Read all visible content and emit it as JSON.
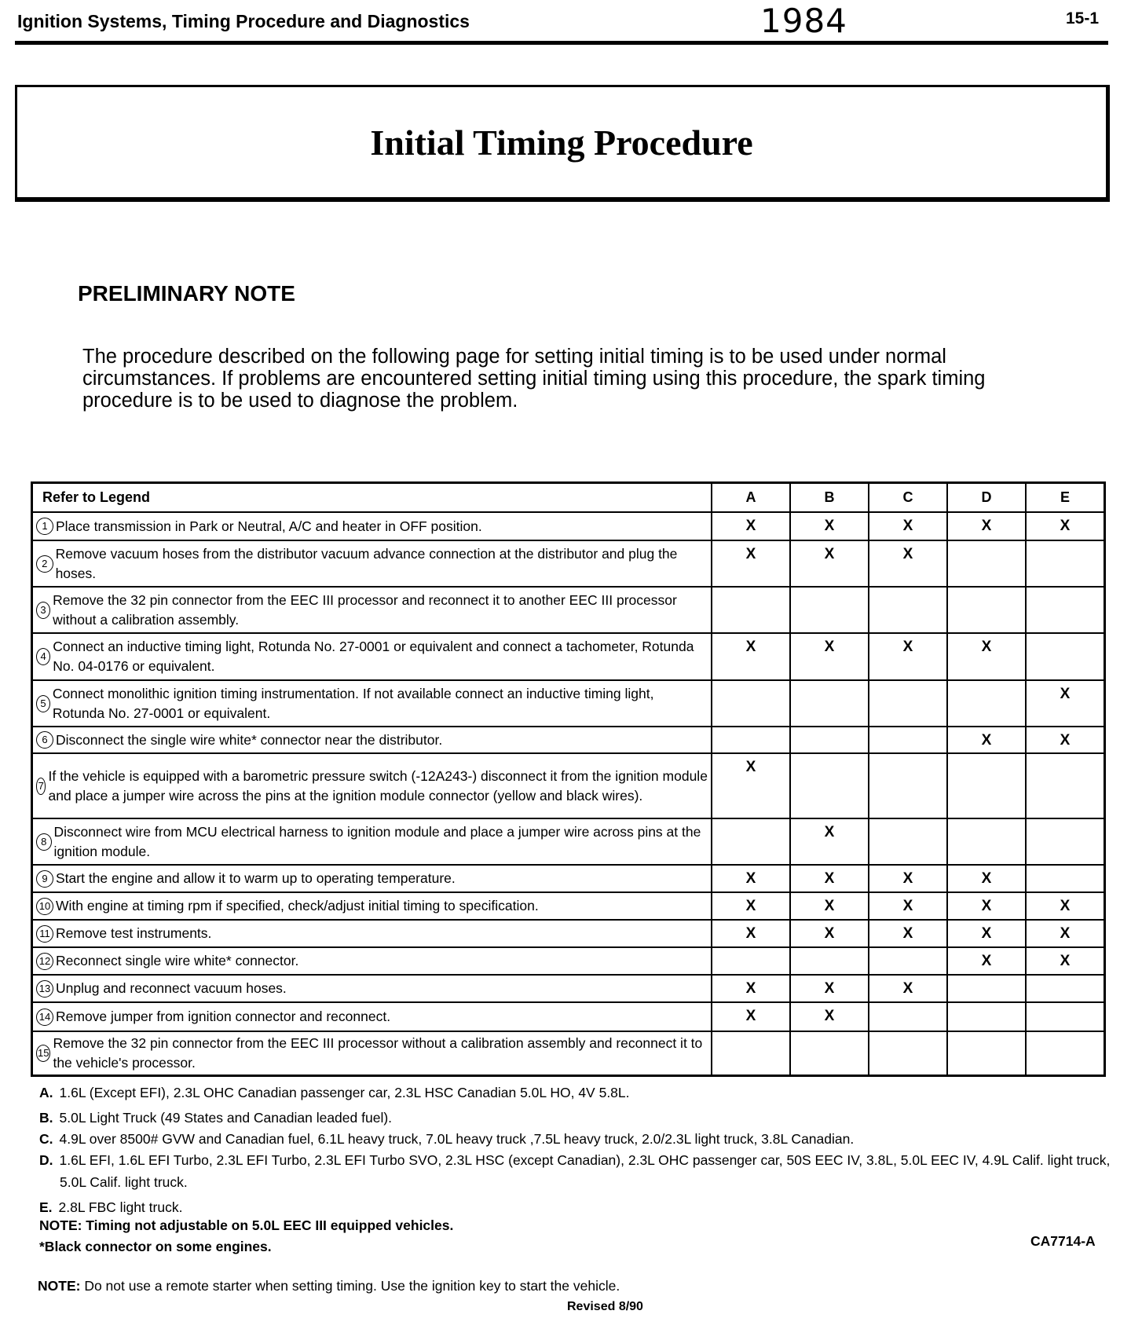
{
  "header": {
    "section_title": "Ignition Systems, Timing Procedure and Diagnostics",
    "year": "1984",
    "page_number": "15-1"
  },
  "title": "Initial Timing Procedure",
  "preliminary_note": {
    "heading": "PRELIMINARY NOTE",
    "text": "The procedure described on the following page for setting initial timing is to be used under normal circumstances. If problems are encountered setting initial timing using this procedure, the spark timing procedure is to be used to diagnose the problem."
  },
  "table": {
    "header": "Refer to Legend",
    "columns": [
      "A",
      "B",
      "C",
      "D",
      "E"
    ],
    "rows": [
      {
        "num": "1",
        "text": "Place transmission in Park or Neutral, A/C and heater in OFF position.",
        "marks": [
          "X",
          "X",
          "X",
          "X",
          "X"
        ]
      },
      {
        "num": "2",
        "text": "Remove vacuum hoses from the distributor vacuum advance connection at the distributor and plug the hoses.",
        "marks": [
          "X",
          "X",
          "X",
          "",
          ""
        ]
      },
      {
        "num": "3",
        "text": "Remove the 32 pin connector from the EEC III processor and reconnect it to another EEC III processor without a calibration assembly.",
        "marks": [
          "",
          "",
          "",
          "",
          ""
        ]
      },
      {
        "num": "4",
        "text": "Connect an inductive timing light, Rotunda No. 27-0001 or equivalent and connect a tachometer, Rotunda No. 04-0176 or equivalent.",
        "marks": [
          "X",
          "X",
          "X",
          "X",
          ""
        ]
      },
      {
        "num": "5",
        "text": "Connect monolithic ignition timing instrumentation. If not available connect an inductive timing light, Rotunda No. 27-0001 or equivalent.",
        "marks": [
          "",
          "",
          "",
          "",
          "X"
        ]
      },
      {
        "num": "6",
        "text": "Disconnect the single wire white* connector near the distributor.",
        "marks": [
          "",
          "",
          "",
          "X",
          "X"
        ]
      },
      {
        "num": "7",
        "text": "If the vehicle is equipped with a barometric pressure switch (-12A243-) disconnect it from the ignition module and place a jumper wire across the pins at the ignition module connector (yellow and black wires).",
        "marks": [
          "X",
          "",
          "",
          "",
          ""
        ]
      },
      {
        "num": "8",
        "text": "Disconnect wire from MCU electrical harness to ignition module and place a jumper wire across pins at the ignition module.",
        "marks": [
          "",
          "X",
          "",
          "",
          ""
        ]
      },
      {
        "num": "9",
        "text": "Start the engine and allow it to warm up to operating temperature.",
        "marks": [
          "X",
          "X",
          "X",
          "X",
          ""
        ]
      },
      {
        "num": "10",
        "text": "With engine at timing rpm if specified, check/adjust initial timing to specification.",
        "marks": [
          "X",
          "X",
          "X",
          "X",
          "X"
        ]
      },
      {
        "num": "11",
        "text": "Remove test instruments.",
        "marks": [
          "X",
          "X",
          "X",
          "X",
          "X"
        ]
      },
      {
        "num": "12",
        "text": "Reconnect single wire white* connector.",
        "marks": [
          "",
          "",
          "",
          "X",
          "X"
        ]
      },
      {
        "num": "13",
        "text": "Unplug and reconnect vacuum hoses.",
        "marks": [
          "X",
          "X",
          "X",
          "",
          ""
        ]
      },
      {
        "num": "14",
        "text": "Remove jumper from ignition connector and reconnect.",
        "marks": [
          "X",
          "X",
          "",
          "",
          ""
        ]
      },
      {
        "num": "15",
        "text": "Remove the 32 pin connector from the EEC III processor without a calibration assembly and reconnect it to the vehicle's processor.",
        "marks": [
          "",
          "",
          "",
          "",
          ""
        ]
      }
    ]
  },
  "legend": [
    {
      "key": "A.",
      "text": "1.6L (Except EFI), 2.3L OHC Canadian passenger car, 2.3L HSC Canadian 5.0L HO, 4V 5.8L."
    },
    {
      "key": "B.",
      "text": "5.0L Light Truck (49 States and Canadian leaded fuel)."
    },
    {
      "key": "C.",
      "text": "4.9L over 8500# GVW and Canadian fuel, 6.1L heavy truck, 7.0L heavy truck ,7.5L heavy truck, 2.0/2.3L light truck, 3.8L Canadian."
    },
    {
      "key": "D.",
      "text": "1.6L EFI, 1.6L EFI Turbo, 2.3L EFI Turbo, 2.3L EFI Turbo SVO, 2.3L HSC (except Canadian), 2.3L OHC passenger car, 50S EEC IV, 3.8L, 5.0L EEC IV, 4.9L Calif. light truck, 5.0L Calif. light truck."
    },
    {
      "key": "E.",
      "text": "2.8L FBC light truck."
    }
  ],
  "notes": {
    "note1": "NOTE: Timing not adjustable on 5.0L EEC III equipped vehicles.",
    "note2": "*Black connector on some engines.",
    "figure_id": "CA7714-A",
    "final_note_label": "NOTE:",
    "final_note_text": "Do not use a remote starter when setting timing. Use the ignition key to start the vehicle.",
    "revised": "Revised 8/90"
  }
}
